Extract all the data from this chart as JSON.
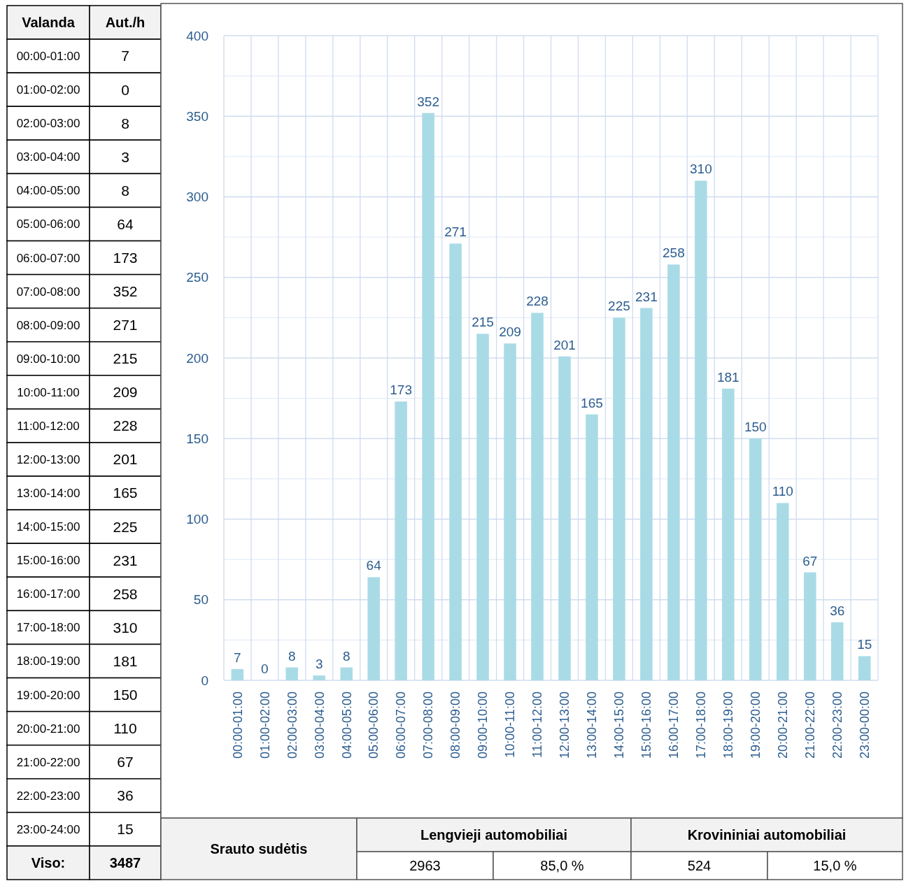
{
  "chart_data": [
    {
      "type": "other",
      "annotations": [
        "Valanda",
        "Aut./h",
        "00:00-01:00",
        "7",
        "01:00-02:00",
        "0",
        "02:00-03:00",
        "8",
        "03:00-04:00",
        "3",
        "04:00-05:00",
        "8",
        "05:00-06:00",
        "64",
        "06:00-07:00",
        "173",
        "07:00-08:00",
        "352",
        "08:00-09:00",
        "271",
        "09:00-10:00",
        "215",
        "10:00-11:00",
        "209",
        "11:00-12:00",
        "228",
        "12:00-13:00",
        "201",
        "13:00-14:00",
        "165",
        "14:00-15:00",
        "225",
        "15:00-16:00",
        "231",
        "16:00-17:00",
        "258",
        "17:00-18:00",
        "310",
        "18:00-19:00",
        "181",
        "19:00-20:00",
        "150",
        "20:00-21:00",
        "110",
        "21:00-22:00",
        "67",
        "22:00-23:00",
        "36",
        "23:00-24:00",
        "15",
        "Viso:",
        "3487"
      ]
    },
    {
      "type": "bar",
      "categories": [
        "00:00-01:00",
        "01:00-02:00",
        "02:00-03:00",
        "03:00-04:00",
        "04:00-05:00",
        "05:00-06:00",
        "06:00-07:00",
        "07:00-08:00",
        "08:00-09:00",
        "09:00-10:00",
        "10:00-11:00",
        "11:00-12:00",
        "12:00-13:00",
        "13:00-14:00",
        "14:00-15:00",
        "15:00-16:00",
        "16:00-17:00",
        "17:00-18:00",
        "18:00-19:00",
        "19:00-20:00",
        "20:00-21:00",
        "21:00-22:00",
        "22:00-23:00",
        "23:00-00:00"
      ],
      "values": [
        7,
        0,
        8,
        3,
        8,
        64,
        173,
        352,
        271,
        215,
        209,
        228,
        201,
        165,
        225,
        231,
        258,
        310,
        181,
        150,
        110,
        67,
        36,
        15
      ],
      "color": "#a9dbe6",
      "data_labels": true,
      "grid": true,
      "ylim": [
        0,
        400
      ],
      "yticks": [
        0,
        {
          "value": 25,
          "label": null
        },
        50,
        {
          "value": 75,
          "label": null
        },
        100,
        {
          "value": 125,
          "label": null
        },
        150,
        {
          "value": 175,
          "label": null
        },
        200,
        {
          "value": 225,
          "label": null
        },
        250,
        {
          "value": 275,
          "label": null
        },
        300,
        {
          "value": 325,
          "label": null
        },
        350,
        {
          "value": 375,
          "label": null
        },
        400
      ]
    },
    {
      "type": "other",
      "annotations": [
        "Srauto sudėtis",
        "Lengvieji automobiliai",
        "Krovininiai automobiliai",
        "2963",
        "85,0 %",
        "524",
        "15,0 %"
      ]
    }
  ]
}
